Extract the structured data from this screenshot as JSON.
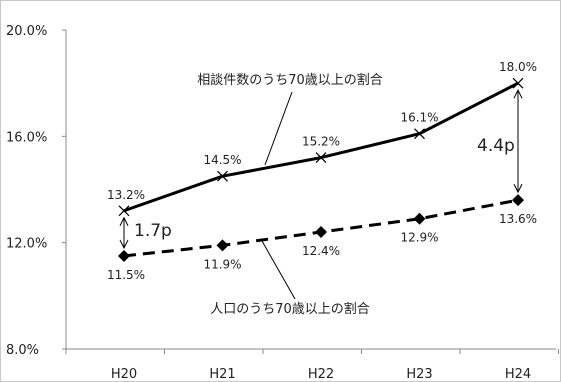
{
  "chart_data": {
    "type": "line",
    "categories": [
      "H20",
      "H21",
      "H22",
      "H23",
      "H24"
    ],
    "ylim": [
      8.0,
      20.0
    ],
    "y_ticks": [
      "8.0%",
      "12.0%",
      "16.0%",
      "20.0%"
    ],
    "y_tick_values": [
      8,
      12,
      16,
      20
    ],
    "grid": false,
    "series": [
      {
        "name": "相談件数のうち70歳以上の割合",
        "values": [
          13.2,
          14.5,
          15.2,
          16.1,
          18.0
        ],
        "labels": [
          "13.2%",
          "14.5%",
          "15.2%",
          "16.1%",
          "18.0%"
        ],
        "line_style": "solid",
        "marker": "x",
        "color": "#000000"
      },
      {
        "name": "人口のうち70歳以上の割合",
        "values": [
          11.5,
          11.9,
          12.4,
          12.9,
          13.6
        ],
        "labels": [
          "11.5%",
          "11.9%",
          "12.4%",
          "12.9%",
          "13.6%"
        ],
        "line_style": "dashed",
        "marker": "diamond",
        "color": "#000000"
      }
    ],
    "annotations": [
      {
        "text": "1.7p",
        "category": "H20"
      },
      {
        "text": "4.4p",
        "category": "H24"
      }
    ]
  }
}
